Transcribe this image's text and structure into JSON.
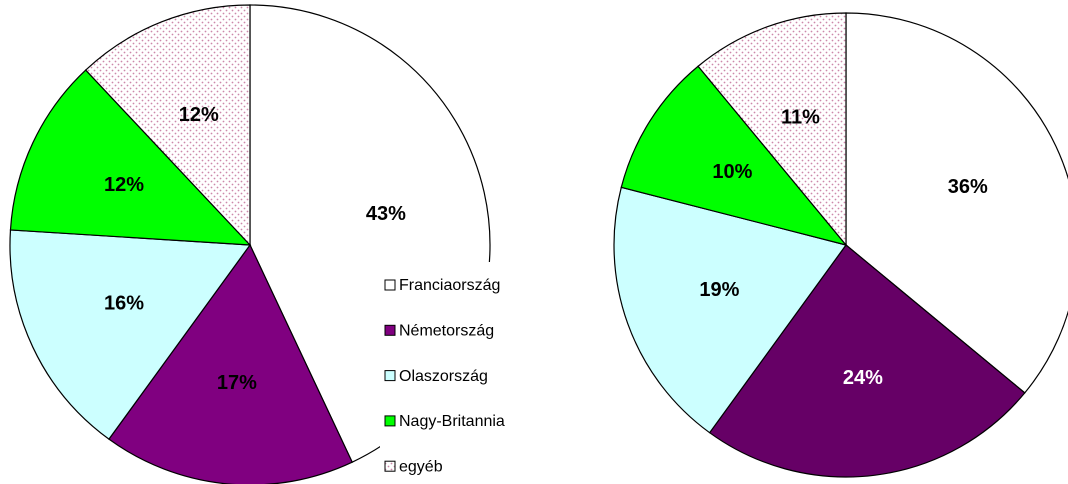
{
  "chart_data": [
    {
      "type": "pie",
      "categories": [
        "Franciaország",
        "Németország",
        "Olaszország",
        "Nagy-Britannia",
        "egyéb"
      ],
      "values": [
        43,
        17,
        16,
        12,
        12
      ],
      "value_labels": [
        "43%",
        "17%",
        "16%",
        "12%",
        "12%"
      ],
      "colors": [
        "#ffffff",
        "#800080",
        "#ccffff",
        "#00ff00",
        "url(#dots)"
      ],
      "legend": "center"
    },
    {
      "type": "pie",
      "categories": [
        "Franciaország",
        "Németország",
        "Olaszország",
        "Nagy-Britannia",
        "egyéb"
      ],
      "values": [
        36,
        24,
        19,
        10,
        11
      ],
      "value_labels": [
        "36%",
        "24%",
        "19%",
        "10%",
        "11%"
      ],
      "colors": [
        "#ffffff",
        "#660066",
        "#ccffff",
        "#00ff00",
        "url(#dots)"
      ]
    }
  ]
}
